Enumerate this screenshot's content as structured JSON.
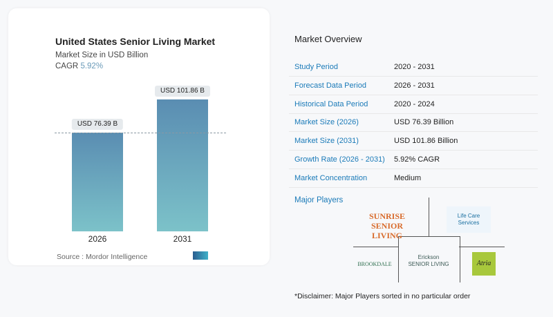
{
  "chart_data": {
    "type": "bar",
    "title": "United States Senior Living Market",
    "subtitle": "Market Size in USD Billion",
    "cagr_label": "CAGR",
    "cagr_value": "5.92%",
    "categories": [
      "2026",
      "2031"
    ],
    "values": [
      76.39,
      101.86
    ],
    "data_labels": [
      "USD 76.39 B",
      "USD 101.86 B"
    ],
    "source": "Source :  Mordor Intelligence",
    "colors": {
      "bar_top": "#5a8db2",
      "bar_bottom": "#7cc2c9"
    }
  },
  "overview": {
    "title": "Market Overview",
    "rows": [
      {
        "k": "Study Period",
        "v": "2020 - 2031"
      },
      {
        "k": "Forecast Data Period",
        "v": "2026 - 2031"
      },
      {
        "k": "Historical Data Period",
        "v": "2020 - 2024"
      },
      {
        "k": "Market Size (2026)",
        "v": "USD 76.39 Billion"
      },
      {
        "k": "Market Size (2031)",
        "v": "USD 101.86 Billion"
      },
      {
        "k": "Growth Rate (2026 - 2031)",
        "v": "5.92% CAGR"
      },
      {
        "k": "Market Concentration",
        "v": "Medium"
      }
    ]
  },
  "players": {
    "title": "Major Players",
    "logos": [
      "SUNRISE SENIOR LIVING",
      "Life Care Services",
      "Erickson SENIOR LIVING",
      "BROOKDALE",
      "Atria"
    ]
  },
  "disclaimer": "*Disclaimer: Major Players sorted in no particular order"
}
